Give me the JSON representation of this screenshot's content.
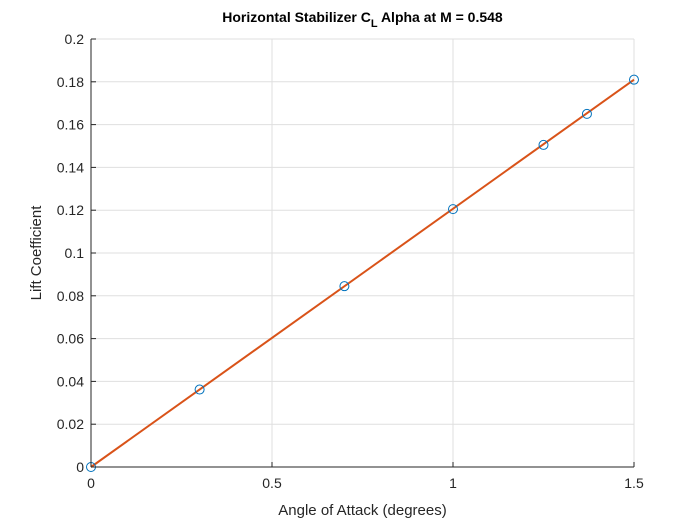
{
  "chart_data": {
    "type": "scatter",
    "title_main": "Horizontal Stabilizer C",
    "title_sub": "L",
    "title_rest": " Alpha at M = 0.548",
    "xlabel": "Angle of Attack (degrees)",
    "ylabel": "Lift Coefficient",
    "xlim": [
      0,
      1.5
    ],
    "ylim": [
      0,
      0.2
    ],
    "xticks": [
      0,
      0.5,
      1,
      1.5
    ],
    "xtick_labels": [
      "0",
      "0.5",
      "1",
      "1.5"
    ],
    "yticks": [
      0,
      0.02,
      0.04,
      0.06,
      0.08,
      0.1,
      0.12,
      0.14,
      0.16,
      0.18,
      0.2
    ],
    "ytick_labels": [
      "0",
      "0.02",
      "0.04",
      "0.06",
      "0.08",
      "0.1",
      "0.12",
      "0.14",
      "0.16",
      "0.18",
      "0.2"
    ],
    "grid": true,
    "series": [
      {
        "kind": "markers",
        "marker": "circle",
        "color": "#0072BD",
        "x": [
          0,
          0.3,
          0.7,
          1.0,
          1.25,
          1.37,
          1.5
        ],
        "y": [
          0,
          0.0362,
          0.0845,
          0.1205,
          0.1505,
          0.165,
          0.181
        ]
      },
      {
        "kind": "line",
        "color": "#D95319",
        "x": [
          0,
          1.5
        ],
        "y": [
          0,
          0.181
        ]
      }
    ]
  }
}
